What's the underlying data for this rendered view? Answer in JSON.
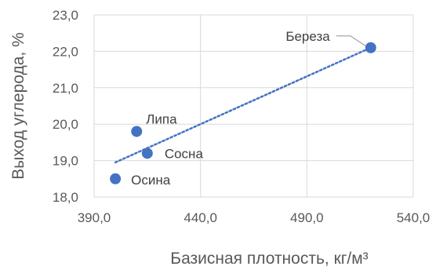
{
  "chart_data": {
    "type": "scatter",
    "title": "",
    "xlabel": "Базисная плотность, кг/м³",
    "ylabel": "Выход углерода, %",
    "xlim": [
      390,
      540
    ],
    "ylim": [
      18,
      23
    ],
    "xticks": [
      "390,0",
      "440,0",
      "490,0",
      "540,0"
    ],
    "yticks": [
      "18,0",
      "19,0",
      "20,0",
      "21,0",
      "22,0",
      "23,0"
    ],
    "grid": true,
    "legend": "none",
    "marker_color": "#4472C4",
    "trendline": {
      "style": "dotted",
      "color": "#4472C4",
      "from": [
        400,
        18.95
      ],
      "to": [
        520,
        22.1
      ]
    },
    "points": [
      {
        "label": "Береза",
        "x": 520,
        "y": 22.1
      },
      {
        "label": "Липа",
        "x": 410,
        "y": 19.8
      },
      {
        "label": "Сосна",
        "x": 415,
        "y": 19.2
      },
      {
        "label": "Осина",
        "x": 400,
        "y": 18.5
      }
    ]
  }
}
